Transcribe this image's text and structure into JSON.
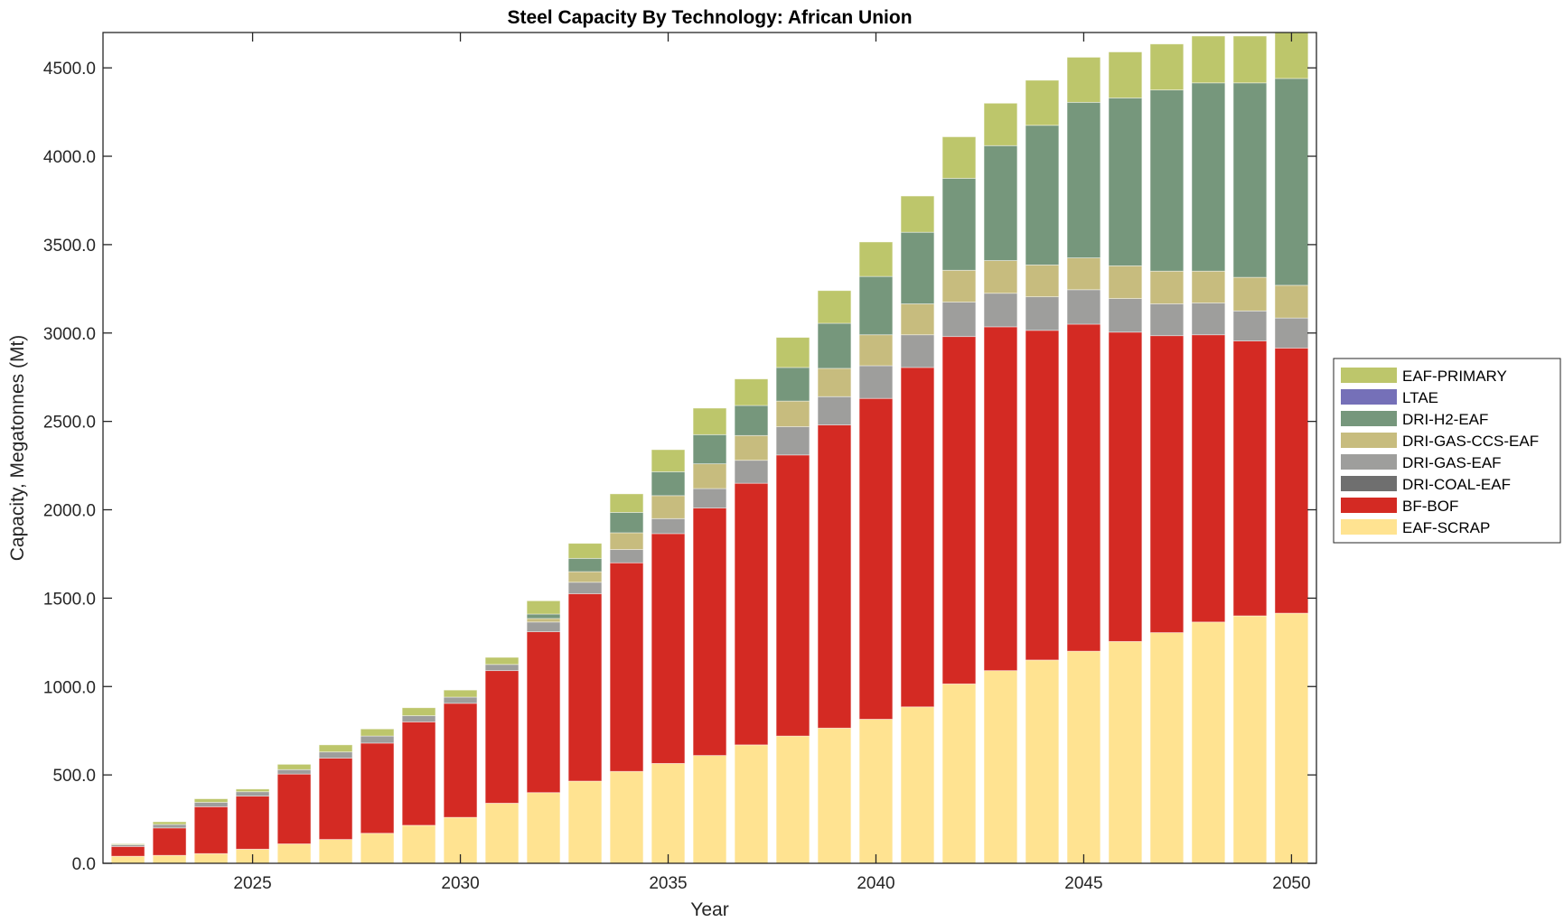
{
  "chart_data": {
    "type": "bar",
    "stacked": true,
    "title": "Steel Capacity By Technology: African Union",
    "xlabel": "Year",
    "ylabel": "Capacity, Megatonnes (Mt)",
    "ylim": [
      0,
      4700
    ],
    "xlim": [
      2021.4,
      2050.6
    ],
    "yticks": [
      0,
      500,
      1000,
      1500,
      2000,
      2500,
      3000,
      3500,
      4000,
      4500
    ],
    "ytick_labels": [
      "0.0",
      "500.0",
      "1000.0",
      "1500.0",
      "2000.0",
      "2500.0",
      "3000.0",
      "3500.0",
      "4000.0",
      "4500.0"
    ],
    "xticks": [
      2025,
      2030,
      2035,
      2040,
      2045,
      2050
    ],
    "xtick_labels": [
      "2025",
      "2030",
      "2035",
      "2040",
      "2045",
      "2050"
    ],
    "grid": false,
    "legend_position": "right",
    "categories": [
      2022,
      2023,
      2024,
      2025,
      2026,
      2027,
      2028,
      2029,
      2030,
      2031,
      2032,
      2033,
      2034,
      2035,
      2036,
      2037,
      2038,
      2039,
      2040,
      2041,
      2042,
      2043,
      2044,
      2045,
      2046,
      2047,
      2048,
      2049,
      2050
    ],
    "series": [
      {
        "name": "EAF-SCRAP",
        "color": "#FFE391",
        "values": [
          40,
          45,
          55,
          80,
          110,
          135,
          170,
          215,
          260,
          340,
          400,
          465,
          520,
          565,
          610,
          670,
          720,
          765,
          815,
          885,
          1015,
          1090,
          1150,
          1200,
          1255,
          1305,
          1365,
          1400,
          1415
        ]
      },
      {
        "name": "BF-BOF",
        "color": "#D42A23",
        "values": [
          55,
          155,
          265,
          300,
          395,
          460,
          510,
          585,
          645,
          750,
          910,
          1060,
          1180,
          1300,
          1400,
          1480,
          1590,
          1715,
          1815,
          1920,
          1965,
          1945,
          1865,
          1850,
          1750,
          1680,
          1625,
          1555,
          1500
        ]
      },
      {
        "name": "DRI-COAL-EAF",
        "color": "#6F6F6F",
        "values": [
          0,
          0,
          0,
          0,
          0,
          0,
          0,
          0,
          0,
          0,
          0,
          0,
          0,
          0,
          0,
          0,
          0,
          0,
          0,
          0,
          0,
          0,
          0,
          0,
          0,
          0,
          0,
          0,
          0
        ]
      },
      {
        "name": "DRI-GAS-EAF",
        "color": "#9E9E9C",
        "values": [
          10,
          20,
          25,
          25,
          25,
          35,
          40,
          35,
          35,
          35,
          55,
          65,
          75,
          85,
          110,
          130,
          160,
          160,
          185,
          185,
          195,
          190,
          190,
          195,
          190,
          180,
          180,
          170,
          170
        ]
      },
      {
        "name": "DRI-GAS-CCS-EAF",
        "color": "#C7BC7E",
        "values": [
          0,
          0,
          0,
          0,
          0,
          0,
          0,
          0,
          0,
          0,
          20,
          60,
          95,
          130,
          140,
          140,
          145,
          160,
          175,
          175,
          180,
          185,
          180,
          180,
          185,
          185,
          180,
          190,
          185
        ]
      },
      {
        "name": "DRI-H2-EAF",
        "color": "#76977C",
        "values": [
          0,
          0,
          0,
          0,
          0,
          0,
          0,
          0,
          0,
          0,
          25,
          75,
          115,
          135,
          165,
          170,
          190,
          255,
          330,
          405,
          520,
          650,
          790,
          880,
          950,
          1025,
          1065,
          1100,
          1170
        ]
      },
      {
        "name": "LTAE",
        "color": "#7570B8",
        "values": [
          0,
          0,
          0,
          0,
          0,
          0,
          0,
          0,
          0,
          0,
          0,
          0,
          0,
          0,
          0,
          0,
          0,
          0,
          0,
          0,
          0,
          0,
          0,
          0,
          0,
          0,
          0,
          0,
          0
        ]
      },
      {
        "name": "EAF-PRIMARY",
        "color": "#BDC66B",
        "values": [
          5,
          15,
          20,
          15,
          30,
          40,
          40,
          45,
          40,
          40,
          75,
          85,
          105,
          125,
          150,
          150,
          170,
          185,
          195,
          205,
          235,
          240,
          255,
          255,
          260,
          260,
          265,
          265,
          260
        ]
      }
    ],
    "legend_order": [
      "EAF-PRIMARY",
      "LTAE",
      "DRI-H2-EAF",
      "DRI-GAS-CCS-EAF",
      "DRI-GAS-EAF",
      "DRI-COAL-EAF",
      "BF-BOF",
      "EAF-SCRAP"
    ]
  }
}
